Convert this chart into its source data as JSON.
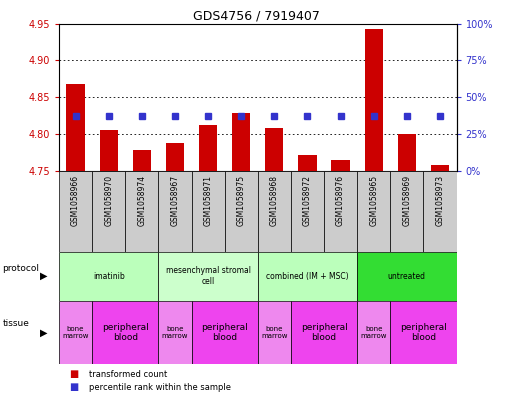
{
  "title": "GDS4756 / 7919407",
  "samples": [
    "GSM1058966",
    "GSM1058970",
    "GSM1058974",
    "GSM1058967",
    "GSM1058971",
    "GSM1058975",
    "GSM1058968",
    "GSM1058972",
    "GSM1058976",
    "GSM1058965",
    "GSM1058969",
    "GSM1058973"
  ],
  "transformed_count": [
    4.868,
    4.806,
    4.778,
    4.788,
    4.813,
    4.828,
    4.808,
    4.772,
    4.765,
    4.942,
    4.8,
    4.758
  ],
  "percentile_rank": [
    37,
    37,
    37,
    37,
    37,
    37,
    37,
    37,
    37,
    37,
    37,
    37
  ],
  "ylim_left": [
    4.75,
    4.95
  ],
  "ylim_right": [
    0,
    100
  ],
  "yticks_left": [
    4.75,
    4.8,
    4.85,
    4.9,
    4.95
  ],
  "yticks_right": [
    0,
    25,
    50,
    75,
    100
  ],
  "ytick_labels_right": [
    "0%",
    "25%",
    "50%",
    "75%",
    "100%"
  ],
  "bar_color": "#cc0000",
  "dot_color": "#3333cc",
  "protocol_groups": [
    {
      "label": "imatinib",
      "start": 0,
      "end": 3,
      "color": "#bbffbb"
    },
    {
      "label": "mesenchymal stromal\ncell",
      "start": 3,
      "end": 6,
      "color": "#ccffcc"
    },
    {
      "label": "combined (IM + MSC)",
      "start": 6,
      "end": 9,
      "color": "#bbffbb"
    },
    {
      "label": "untreated",
      "start": 9,
      "end": 12,
      "color": "#33dd33"
    }
  ],
  "tissue_groups": [
    {
      "label": "bone\nmarrow",
      "start": 0,
      "end": 1,
      "color": "#ee88ee"
    },
    {
      "label": "peripheral\nblood",
      "start": 1,
      "end": 3,
      "color": "#ee44ee"
    },
    {
      "label": "bone\nmarrow",
      "start": 3,
      "end": 4,
      "color": "#ee88ee"
    },
    {
      "label": "peripheral\nblood",
      "start": 4,
      "end": 6,
      "color": "#ee44ee"
    },
    {
      "label": "bone\nmarrow",
      "start": 6,
      "end": 7,
      "color": "#ee88ee"
    },
    {
      "label": "peripheral\nblood",
      "start": 7,
      "end": 9,
      "color": "#ee44ee"
    },
    {
      "label": "bone\nmarrow",
      "start": 9,
      "end": 10,
      "color": "#ee88ee"
    },
    {
      "label": "peripheral\nblood",
      "start": 10,
      "end": 12,
      "color": "#ee44ee"
    }
  ],
  "left_axis_color": "#cc0000",
  "right_axis_color": "#3333cc",
  "sample_bg_color": "#cccccc",
  "fig_width": 5.13,
  "fig_height": 3.93,
  "dpi": 100
}
